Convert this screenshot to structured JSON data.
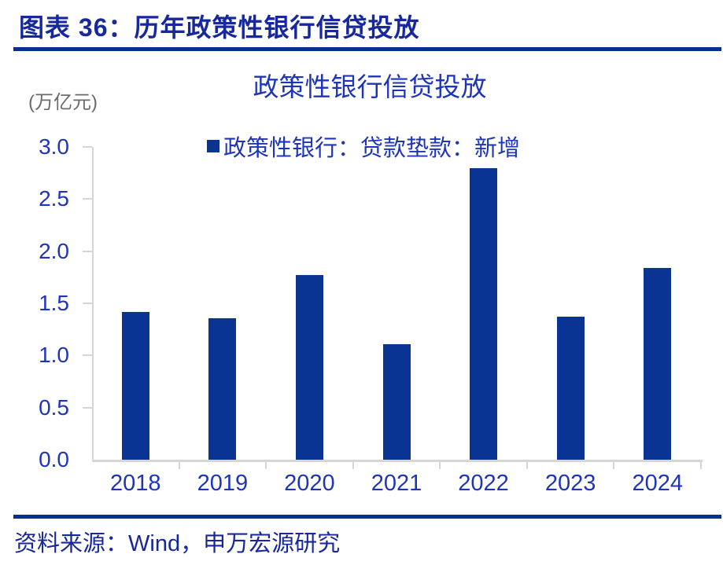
{
  "header": {
    "title": "图表 36：历年政策性银行信贷投放"
  },
  "chart_data": {
    "type": "bar",
    "title": "政策性银行信贷投放",
    "unit_label": "(万亿元)",
    "legend_label": "政策性银行：贷款垫款：新增",
    "legend_position": "top-center",
    "grid": false,
    "categories": [
      "2018",
      "2019",
      "2020",
      "2021",
      "2022",
      "2023",
      "2024"
    ],
    "series": [
      {
        "name": "政策性银行：贷款垫款：新增",
        "values": [
          1.42,
          1.36,
          1.77,
          1.11,
          2.8,
          1.37,
          1.84
        ]
      }
    ],
    "ylim": [
      0.0,
      3.0
    ],
    "ytick_step": 0.5,
    "ytick_labels": [
      "0.0",
      "0.5",
      "1.0",
      "1.5",
      "2.0",
      "2.5",
      "3.0"
    ],
    "xlabel": "",
    "ylabel": "(万亿元)"
  },
  "footer": {
    "source": "资料来源：Wind，申万宏源研究"
  },
  "colors": {
    "bar": "#0A3494",
    "chart_text": "#1F35B8",
    "header_text": "#17279C",
    "divider_rule": "#05308F",
    "axis": "#D6D6D6",
    "unit_text": "#6B6B6B",
    "background": "#FFFFFF"
  }
}
